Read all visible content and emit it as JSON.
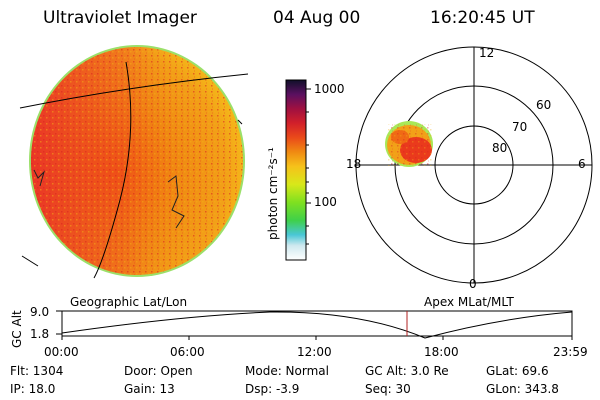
{
  "header": {
    "instrument": "Ultraviolet Imager",
    "date": "04 Aug 00",
    "time": "16:20:45 UT"
  },
  "colorbar": {
    "unit_label": "photon cm⁻²s⁻¹",
    "ticks": [
      "1000",
      "100"
    ]
  },
  "polar_plot": {
    "mlt_labels": [
      "12",
      "18",
      "6",
      "0"
    ],
    "mlat_labels": [
      "60",
      "70",
      "80"
    ]
  },
  "panel_labels": {
    "left": "Geographic Lat/Lon",
    "right": "Apex MLat/MLT"
  },
  "altitude_plot": {
    "ylabel": "GC Alt",
    "y_ticks": [
      "9.0",
      "1.8"
    ],
    "x_ticks": [
      "00:00",
      "06:00",
      "12:00",
      "18:00",
      "23:59"
    ]
  },
  "status": {
    "flt": "Flt: 1304",
    "door": "Door: Open",
    "mode": "Mode: Normal",
    "gc_alt": "GC Alt: 3.0 Re",
    "glat": "GLat:  69.6",
    "ip": "IP: 18.0",
    "gain": "Gain: 13",
    "dsp": "Dsp:    -3.9",
    "seq": "Seq: 30",
    "glon": "GLon: 343.8"
  }
}
